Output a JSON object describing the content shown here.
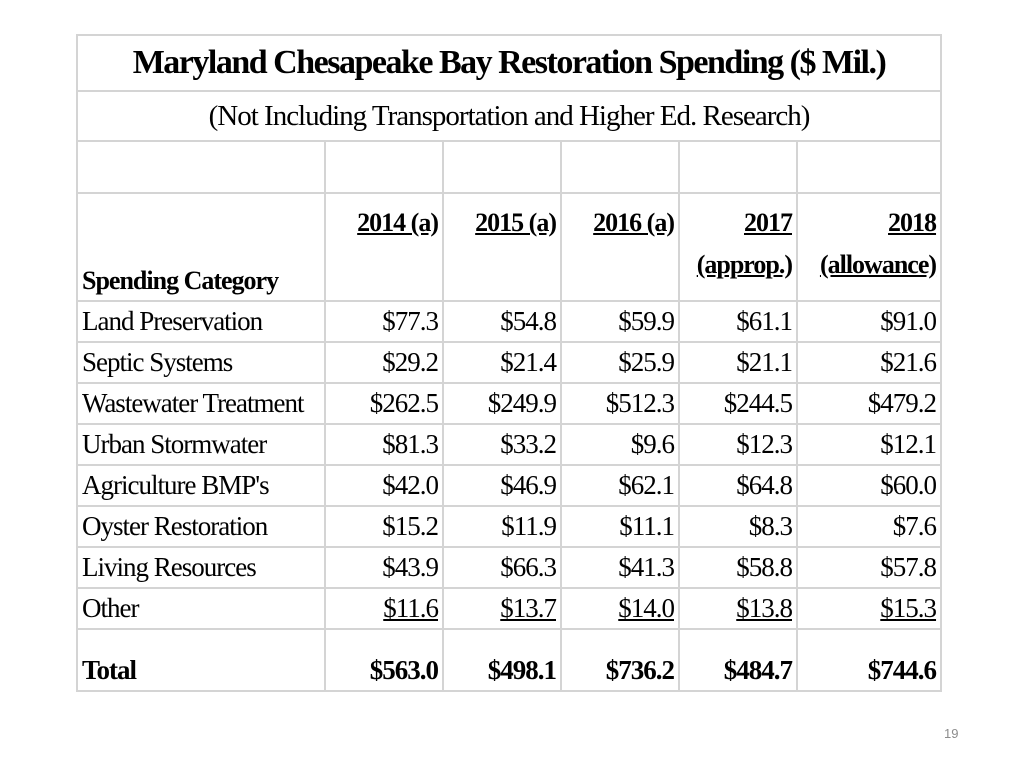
{
  "table": {
    "title": "Maryland Chesapeake Bay Restoration Spending ($ Mil.)",
    "subtitle": "(Not Including Transportation and Higher Ed. Research)",
    "category_header": "Spending Category",
    "columns": [
      {
        "line1": "2014 (a)",
        "line2": ""
      },
      {
        "line1": "2015 (a)",
        "line2": ""
      },
      {
        "line1": "2016 (a)",
        "line2": ""
      },
      {
        "line1": "2017",
        "line2": "(approp.)"
      },
      {
        "line1": "2018",
        "line2": "(allowance)"
      }
    ],
    "rows": [
      {
        "category": "Land Preservation",
        "values": [
          "$77.3",
          "$54.8",
          "$59.9",
          "$61.1",
          "$91.0"
        ]
      },
      {
        "category": "Septic Systems",
        "values": [
          "$29.2",
          "$21.4",
          "$25.9",
          "$21.1",
          "$21.6"
        ]
      },
      {
        "category": "Wastewater Treatment",
        "values": [
          "$262.5",
          "$249.9",
          "$512.3",
          "$244.5",
          "$479.2"
        ]
      },
      {
        "category": "Urban Stormwater",
        "values": [
          "$81.3",
          "$33.2",
          "$9.6",
          "$12.3",
          "$12.1"
        ]
      },
      {
        "category": "Agriculture BMP's",
        "values": [
          "$42.0",
          "$46.9",
          "$62.1",
          "$64.8",
          "$60.0"
        ]
      },
      {
        "category": "Oyster Restoration",
        "values": [
          "$15.2",
          "$11.9",
          "$11.1",
          "$8.3",
          "$7.6"
        ]
      },
      {
        "category": "Living Resources",
        "values": [
          "$43.9",
          "$66.3",
          "$41.3",
          "$58.8",
          "$57.8"
        ]
      },
      {
        "category": "Other",
        "values": [
          "$11.6",
          "$13.7",
          "$14.0",
          "$13.8",
          "$15.3"
        ]
      }
    ],
    "total": {
      "label": "Total",
      "values": [
        "$563.0",
        "$498.1",
        "$736.2",
        "$484.7",
        "$744.6"
      ]
    }
  },
  "slide": {
    "page_number": "19"
  }
}
